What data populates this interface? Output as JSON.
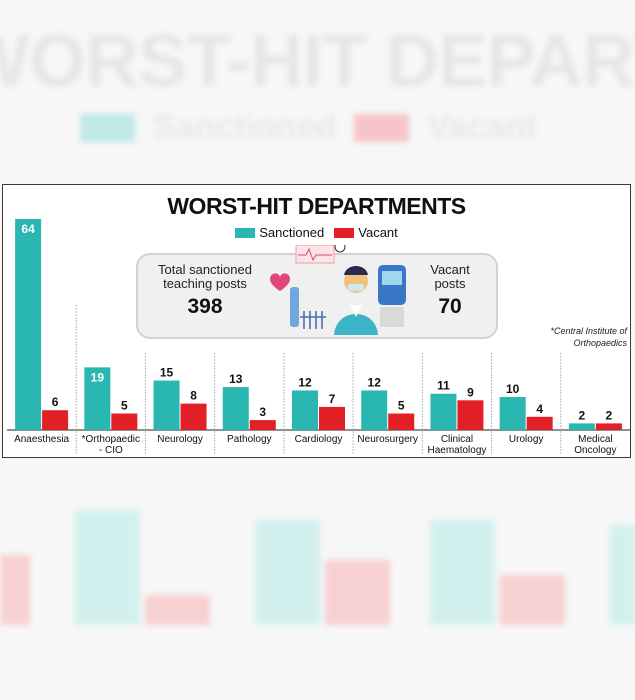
{
  "chart_data": {
    "type": "bar",
    "title": "WORST-HIT DEPARTMENTS",
    "categories": [
      "Anaesthesia",
      "*Orthopaedic - CIO",
      "Neurology",
      "Pathology",
      "Cardiology",
      "Neurosurgery",
      "Clinical Haematology",
      "Urology",
      "Medical Oncology"
    ],
    "category_lines": [
      [
        "Anaesthesia"
      ],
      [
        "*Orthopaedic",
        "- CIO"
      ],
      [
        "Neurology"
      ],
      [
        "Pathology"
      ],
      [
        "Cardiology"
      ],
      [
        "Neurosurgery"
      ],
      [
        "Clinical",
        "Haematology"
      ],
      [
        "Urology"
      ],
      [
        "Medical",
        "Oncology"
      ]
    ],
    "series": [
      {
        "name": "Sanctioned",
        "color": "#2ab7b2",
        "values": [
          64,
          19,
          15,
          13,
          12,
          12,
          11,
          10,
          2
        ]
      },
      {
        "name": "Vacant",
        "color": "#e21e26",
        "values": [
          6,
          5,
          8,
          3,
          7,
          5,
          9,
          4,
          2
        ]
      }
    ],
    "ylim": [
      0,
      64
    ],
    "legend_position": "top-center",
    "grid": false
  },
  "summary": {
    "sanctioned_label_line1": "Total sanctioned",
    "sanctioned_label_line2": "teaching posts",
    "sanctioned_value": "398",
    "vacant_label_line1": "Vacant",
    "vacant_label_line2": "posts",
    "vacant_value": "70"
  },
  "footnote": {
    "line1": "*Central Institute of",
    "line2": "Orthopaedics"
  },
  "background_echo": {
    "title": "WORST-HIT DEPARTMENTS",
    "legend_sanctioned": "Sanctioned",
    "legend_vacant": "Vacant"
  }
}
